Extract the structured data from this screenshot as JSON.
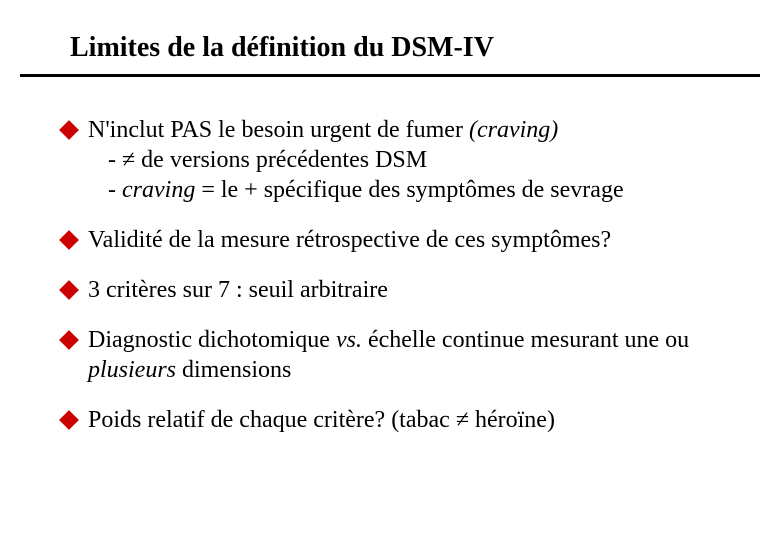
{
  "colors": {
    "bullet": "#cc0000",
    "text": "#000000",
    "rule": "#000000",
    "background": "#ffffff"
  },
  "fonts": {
    "title_size": 28,
    "body_size": 24,
    "family": "Times New Roman"
  },
  "title": "Limites de la définition du DSM-IV",
  "bullets": {
    "b1": {
      "line1a": "N'inclut PAS le besoin urgent de fumer ",
      "line1b_italic": "(craving)",
      "sub1a": "- ",
      "sub1_neq": "≠",
      "sub1b": "  de versions précédentes DSM",
      "sub2a": "- ",
      "sub2a_italic": "craving",
      "sub2b": " = le + spécifique des symptômes de sevrage"
    },
    "b2": "Validité de la mesure rétrospective de ces symptômes?",
    "b3": "3 critères sur 7 : seuil arbitraire",
    "b4": {
      "a": "Diagnostic dichotomique ",
      "b_italic": "vs.",
      "c": " échelle continue mesurant une ou ",
      "d_italic": "plusieurs",
      "e": " dimensions"
    },
    "b5": {
      "a": "Poids relatif de chaque critère? (tabac ",
      "neq": "≠",
      "b": " héroïne)"
    }
  }
}
